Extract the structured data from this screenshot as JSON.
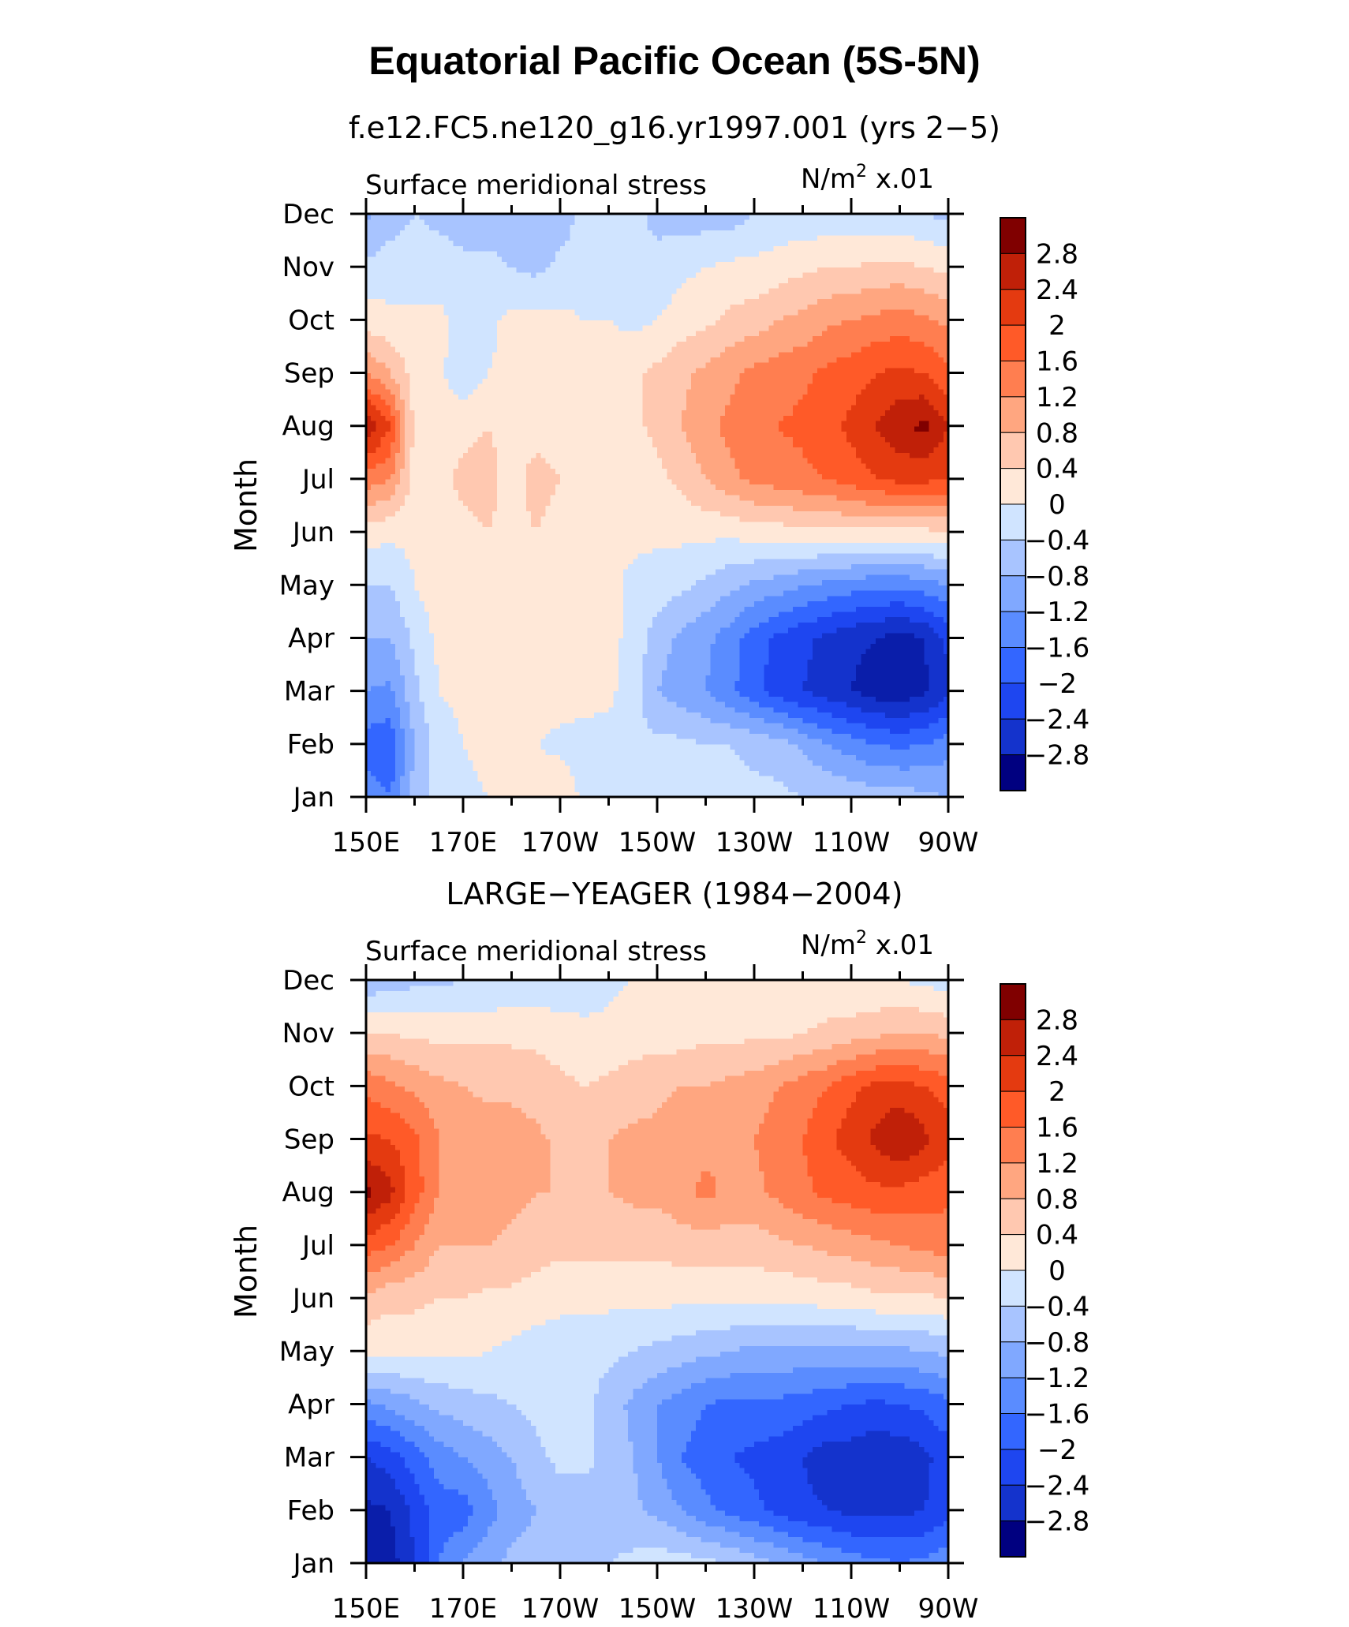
{
  "title": "Equatorial Pacific Ocean (5S-5N)",
  "colors": {
    "levels": [
      "#000080",
      "#0a1eaa",
      "#1433cc",
      "#1e46f0",
      "#3366ff",
      "#5a8cff",
      "#80a8ff",
      "#a8c4ff",
      "#d0e4ff",
      "#ffe8d8",
      "#ffc8b0",
      "#ffa680",
      "#ff7e50",
      "#ff5a28",
      "#e43a10",
      "#c02008",
      "#800000"
    ]
  },
  "chart_data": [
    {
      "type": "heatmap",
      "subtitle": "f.e12.FC5.ne120_g16.yr1997.001 (yrs 2−5)",
      "variable": "Surface meridional stress",
      "units_base": "N/m",
      "units_exp": "2",
      "units_scale": "x.01",
      "ylabel": "Month",
      "x_ticks": [
        "150E",
        "170E",
        "170W",
        "150W",
        "130W",
        "110W",
        "90W"
      ],
      "y_ticks": [
        "Jan",
        "Feb",
        "Mar",
        "Apr",
        "May",
        "Jun",
        "Jul",
        "Aug",
        "Sep",
        "Oct",
        "Nov",
        "Dec"
      ],
      "colorbar_labels": [
        "2.8",
        "2.4",
        "2",
        "1.6",
        "1.2",
        "0.8",
        "0.4",
        "0",
        "−0.4",
        "−0.8",
        "−1.2",
        "−1.6",
        "−2",
        "−2.4",
        "−2.8"
      ],
      "x_lon": [
        150,
        155,
        160,
        165,
        170,
        175,
        180,
        185,
        190,
        195,
        200,
        205,
        210,
        215,
        220,
        225,
        230,
        235,
        240,
        245,
        250,
        255,
        260,
        265,
        270
      ],
      "values": [
        [
          -1.4,
          -1.6,
          -0.6,
          -0.2,
          -0.1,
          0.0,
          0.1,
          0.2,
          0.3,
          -0.1,
          -0.1,
          -0.2,
          -0.3,
          -0.3,
          -0.3,
          -0.3,
          -0.3,
          -0.3,
          -0.4,
          -0.4,
          -0.5,
          -0.6,
          -0.6,
          -0.7,
          -0.8
        ],
        [
          -1.8,
          -1.9,
          -0.8,
          -0.2,
          0.0,
          0.1,
          0.1,
          0.0,
          -0.1,
          -0.2,
          -0.2,
          -0.3,
          -0.3,
          -0.3,
          -0.4,
          -0.4,
          -0.5,
          -0.6,
          -0.9,
          -1.2,
          -1.4,
          -1.6,
          -1.7,
          -1.6,
          -1.4
        ],
        [
          -1.2,
          -1.3,
          -0.5,
          0.0,
          0.1,
          0.2,
          0.2,
          0.2,
          0.2,
          0.2,
          0.1,
          -0.2,
          -0.8,
          -1.0,
          -1.2,
          -1.5,
          -1.9,
          -2.2,
          -2.4,
          -2.6,
          -2.8,
          -3.0,
          -3.1,
          -2.9,
          -2.5
        ],
        [
          -0.8,
          -0.8,
          -0.3,
          0.1,
          0.2,
          0.2,
          0.2,
          0.2,
          0.2,
          0.2,
          0.1,
          -0.1,
          -0.6,
          -0.9,
          -1.1,
          -1.4,
          -1.8,
          -2.1,
          -2.3,
          -2.5,
          -2.7,
          -2.8,
          -3.0,
          -2.8,
          -2.3
        ],
        [
          -0.4,
          -0.4,
          0.0,
          0.2,
          0.3,
          0.4,
          0.3,
          0.4,
          0.3,
          0.2,
          0.1,
          -0.1,
          -0.2,
          -0.3,
          -0.5,
          -0.7,
          -0.9,
          -1.0,
          -1.2,
          -1.3,
          -1.4,
          -1.5,
          -1.5,
          -1.4,
          -1.2
        ],
        [
          0.2,
          0.1,
          0.1,
          0.2,
          0.3,
          0.4,
          0.3,
          0.4,
          0.3,
          0.2,
          0.1,
          0.1,
          0.1,
          0.1,
          0.1,
          0.1,
          0.2,
          0.2,
          0.3,
          0.3,
          0.3,
          0.3,
          0.3,
          0.3,
          0.4
        ],
        [
          1.4,
          1.2,
          0.2,
          0.3,
          0.5,
          0.5,
          0.3,
          0.5,
          0.4,
          0.2,
          0.2,
          0.2,
          0.3,
          0.5,
          0.8,
          1.1,
          1.3,
          1.4,
          1.5,
          1.6,
          1.8,
          2.0,
          2.1,
          2.1,
          2.0
        ],
        [
          2.8,
          2.0,
          0.3,
          0.2,
          0.3,
          0.4,
          0.3,
          0.3,
          0.3,
          0.2,
          0.2,
          0.3,
          0.5,
          0.8,
          1.1,
          1.3,
          1.5,
          1.6,
          1.7,
          1.9,
          2.1,
          2.4,
          2.7,
          2.9,
          2.4
        ],
        [
          1.2,
          0.8,
          0.2,
          0.1,
          -0.3,
          0.0,
          0.1,
          0.2,
          0.2,
          0.2,
          0.2,
          0.3,
          0.5,
          0.7,
          0.9,
          1.1,
          1.3,
          1.4,
          1.5,
          1.7,
          1.8,
          2.0,
          2.1,
          2.0,
          1.7
        ],
        [
          0.2,
          0.1,
          0.1,
          0.1,
          -0.1,
          -0.1,
          0.1,
          0.1,
          0.1,
          0.0,
          0.0,
          -0.1,
          0.0,
          0.2,
          0.3,
          0.5,
          0.6,
          0.8,
          0.9,
          1.1,
          1.2,
          1.3,
          1.4,
          1.3,
          1.1
        ],
        [
          -0.3,
          -0.2,
          -0.2,
          -0.2,
          -0.3,
          -0.3,
          -0.4,
          -0.5,
          -0.3,
          -0.2,
          -0.1,
          -0.3,
          -0.3,
          -0.1,
          0.0,
          0.1,
          0.1,
          0.2,
          0.3,
          0.4,
          0.4,
          0.5,
          0.5,
          0.4,
          0.3
        ],
        [
          -0.9,
          -0.6,
          -0.4,
          -0.5,
          -0.6,
          -0.6,
          -0.6,
          -0.7,
          -0.6,
          -0.3,
          -0.2,
          -0.3,
          -0.5,
          -0.6,
          -0.6,
          -0.6,
          -0.4,
          -0.3,
          -0.3,
          -0.3,
          -0.3,
          -0.3,
          -0.3,
          -0.4,
          -0.5
        ]
      ]
    },
    {
      "type": "heatmap",
      "subtitle": "LARGE−YEAGER (1984−2004)",
      "variable": "Surface meridional stress",
      "units_base": "N/m",
      "units_exp": "2",
      "units_scale": "x.01",
      "ylabel": "Month",
      "x_ticks": [
        "150E",
        "170E",
        "170W",
        "150W",
        "130W",
        "110W",
        "90W"
      ],
      "y_ticks": [
        "Jan",
        "Feb",
        "Mar",
        "Apr",
        "May",
        "Jun",
        "Jul",
        "Aug",
        "Sep",
        "Oct",
        "Nov",
        "Dec"
      ],
      "colorbar_labels": [
        "2.8",
        "2.4",
        "2",
        "1.6",
        "1.2",
        "0.8",
        "0.4",
        "0",
        "−0.4",
        "−0.8",
        "−1.2",
        "−1.6",
        "−2",
        "−2.4",
        "−2.8"
      ],
      "x_lon": [
        150,
        155,
        160,
        165,
        170,
        175,
        180,
        185,
        190,
        195,
        200,
        205,
        210,
        215,
        220,
        225,
        230,
        235,
        240,
        245,
        250,
        255,
        260,
        265,
        270
      ],
      "values": [
        [
          -3.1,
          -3.0,
          -2.4,
          -1.6,
          -1.2,
          -0.9,
          -0.7,
          -0.6,
          -0.6,
          -0.5,
          -0.4,
          -0.3,
          -0.2,
          -0.2,
          -0.3,
          -0.4,
          -0.6,
          -0.8,
          -1.0,
          -1.2,
          -1.4,
          -1.5,
          -1.6,
          -1.5,
          -1.3
        ],
        [
          -2.9,
          -2.8,
          -2.3,
          -1.8,
          -1.8,
          -1.4,
          -1.0,
          -0.8,
          -0.6,
          -0.6,
          -0.6,
          -0.7,
          -0.9,
          -1.2,
          -1.5,
          -1.7,
          -1.9,
          -2.1,
          -2.3,
          -2.4,
          -2.5,
          -2.5,
          -2.5,
          -2.4,
          -2.2
        ],
        [
          -2.4,
          -2.2,
          -1.8,
          -1.4,
          -1.2,
          -1.0,
          -0.8,
          -0.5,
          -0.3,
          -0.3,
          -0.5,
          -0.8,
          -1.2,
          -1.6,
          -1.8,
          -2.0,
          -2.1,
          -2.2,
          -2.4,
          -2.6,
          -2.6,
          -2.7,
          -2.7,
          -2.5,
          -2.2
        ],
        [
          -1.3,
          -1.1,
          -0.9,
          -0.7,
          -0.6,
          -0.5,
          -0.4,
          -0.3,
          -0.2,
          -0.3,
          -0.6,
          -0.9,
          -1.2,
          -1.4,
          -1.6,
          -1.7,
          -1.7,
          -1.7,
          -1.8,
          -1.9,
          -2.0,
          -2.1,
          -2.0,
          -1.9,
          -1.7
        ],
        [
          0.1,
          0.1,
          0.1,
          0.1,
          0.1,
          0.0,
          -0.1,
          -0.2,
          -0.2,
          -0.2,
          -0.3,
          -0.4,
          -0.5,
          -0.6,
          -0.7,
          -0.8,
          -0.9,
          -0.9,
          -0.9,
          -0.9,
          -0.9,
          -0.9,
          -0.9,
          -0.8,
          -0.7
        ],
        [
          0.7,
          0.5,
          0.5,
          0.4,
          0.4,
          0.3,
          0.3,
          0.2,
          0.1,
          0.1,
          0.1,
          0.1,
          0.1,
          0.1,
          0.1,
          0.1,
          0.1,
          0.1,
          0.1,
          0.2,
          0.2,
          0.3,
          0.3,
          0.3,
          0.4
        ],
        [
          1.8,
          1.6,
          1.2,
          0.8,
          0.8,
          0.8,
          0.7,
          0.6,
          0.5,
          0.5,
          0.5,
          0.5,
          0.5,
          0.6,
          0.6,
          0.6,
          0.6,
          0.7,
          0.8,
          0.9,
          1.0,
          1.1,
          1.2,
          1.3,
          1.4
        ],
        [
          2.9,
          2.5,
          1.8,
          1.2,
          1.1,
          1.0,
          0.9,
          0.8,
          0.8,
          0.8,
          0.8,
          0.9,
          0.9,
          1.1,
          1.3,
          1.1,
          1.1,
          1.3,
          1.5,
          1.7,
          1.8,
          1.9,
          1.9,
          1.8,
          1.7
        ],
        [
          2.1,
          2.0,
          1.7,
          1.2,
          1.1,
          1.0,
          1.0,
          0.9,
          0.7,
          0.7,
          0.8,
          0.9,
          0.9,
          1.0,
          1.1,
          1.1,
          1.2,
          1.4,
          1.6,
          1.9,
          2.2,
          2.5,
          2.8,
          2.5,
          2.2
        ],
        [
          1.5,
          1.3,
          1.1,
          0.9,
          0.8,
          0.7,
          0.7,
          0.6,
          0.5,
          0.4,
          0.5,
          0.6,
          0.7,
          0.8,
          0.8,
          0.9,
          1.0,
          1.2,
          1.4,
          1.6,
          1.9,
          2.1,
          2.2,
          2.0,
          1.8
        ],
        [
          0.4,
          0.4,
          0.3,
          0.3,
          0.3,
          0.3,
          0.3,
          0.3,
          0.2,
          0.1,
          0.1,
          0.2,
          0.2,
          0.2,
          0.3,
          0.3,
          0.3,
          0.3,
          0.4,
          0.5,
          0.6,
          0.7,
          0.8,
          0.8,
          0.7
        ],
        [
          -0.7,
          -0.6,
          -0.5,
          -0.5,
          -0.4,
          -0.4,
          -0.3,
          -0.3,
          -0.3,
          -0.2,
          -0.1,
          0.0,
          0.1,
          0.1,
          0.1,
          0.1,
          0.1,
          0.1,
          0.1,
          0.1,
          0.0,
          0.0,
          0.0,
          -0.1,
          -0.2
        ]
      ]
    }
  ]
}
